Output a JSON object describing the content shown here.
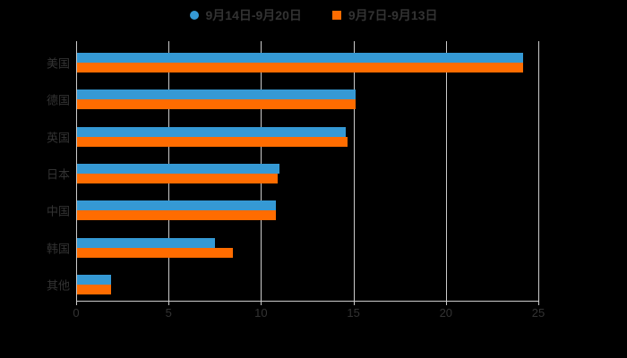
{
  "background_color": "#000000",
  "text_color": "#333333",
  "axis_color": "#cccccc",
  "legend": {
    "items": [
      {
        "label": "9月14日-9月20日",
        "color": "#3599d4",
        "shape": "circle"
      },
      {
        "label": "9月7日-9月13日",
        "color": "#ff6c00",
        "shape": "square"
      }
    ]
  },
  "chart_data": {
    "type": "bar",
    "orientation": "horizontal",
    "title": "",
    "xlabel": "",
    "ylabel": "",
    "categories": [
      "美国",
      "德国",
      "英国",
      "日本",
      "中国",
      "韩国",
      "其他"
    ],
    "series": [
      {
        "name": "9月14日-9月20日",
        "color": "#3599d4",
        "values": [
          24.2,
          15.1,
          14.6,
          11.0,
          10.8,
          7.5,
          1.9
        ]
      },
      {
        "name": "9月7日-9月13日",
        "color": "#ff6c00",
        "values": [
          24.2,
          15.1,
          14.7,
          10.9,
          10.8,
          8.5,
          1.9
        ]
      }
    ],
    "xlim": [
      0,
      25
    ],
    "x_ticks": [
      "0",
      "5",
      "10",
      "15",
      "20",
      "25"
    ],
    "grid": true,
    "legend_position": "top-center"
  }
}
